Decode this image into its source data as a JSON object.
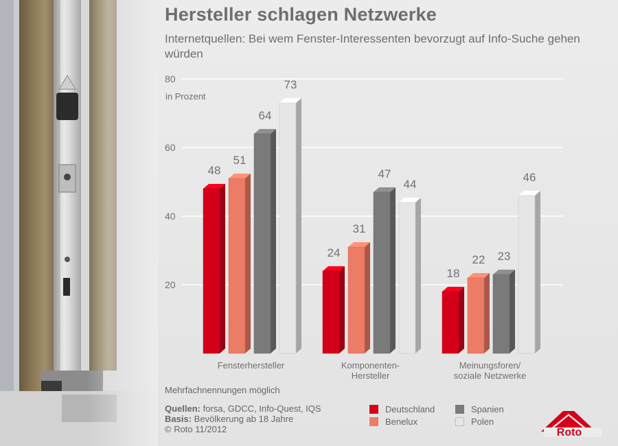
{
  "header": {
    "title": "Hersteller schlagen Netzwerke",
    "subtitle": "Internetquellen: Bei wem Fenster-Interessenten bevorzugt auf Info-Suche gehen würden"
  },
  "chart_data": {
    "type": "bar",
    "unit_label": "in Prozent",
    "ylim": [
      0,
      80
    ],
    "yticks": [
      20,
      40,
      60,
      80
    ],
    "grid": true,
    "categories": [
      [
        "Fensterhersteller"
      ],
      [
        "Komponenten-",
        "Hersteller"
      ],
      [
        "Meinungsforen/",
        "soziale Netzwerke"
      ]
    ],
    "series": [
      {
        "name": "Deutschland",
        "color": "#d4001a",
        "values": [
          48,
          24,
          18
        ]
      },
      {
        "name": "Benelux",
        "color": "#ec7c66",
        "values": [
          51,
          31,
          22
        ]
      },
      {
        "name": "Spanien",
        "color": "#7a7a7a",
        "values": [
          64,
          47,
          23
        ]
      },
      {
        "name": "Polen",
        "color": "#e6e6e6",
        "values": [
          73,
          44,
          46
        ]
      }
    ],
    "legend_position": "bottom-right"
  },
  "footer": {
    "note": "Mehrfachnennungen möglich",
    "sources_label": "Quellen:",
    "sources_value": "forsa, GDCC, Info-Quest, IQS",
    "basis_label": "Basis:",
    "basis_value": "Bevölkerung ab 18 Jahre",
    "copyright": "© Roto 11/2012"
  },
  "logo": {
    "text": "Roto",
    "color": "#d4001a"
  }
}
